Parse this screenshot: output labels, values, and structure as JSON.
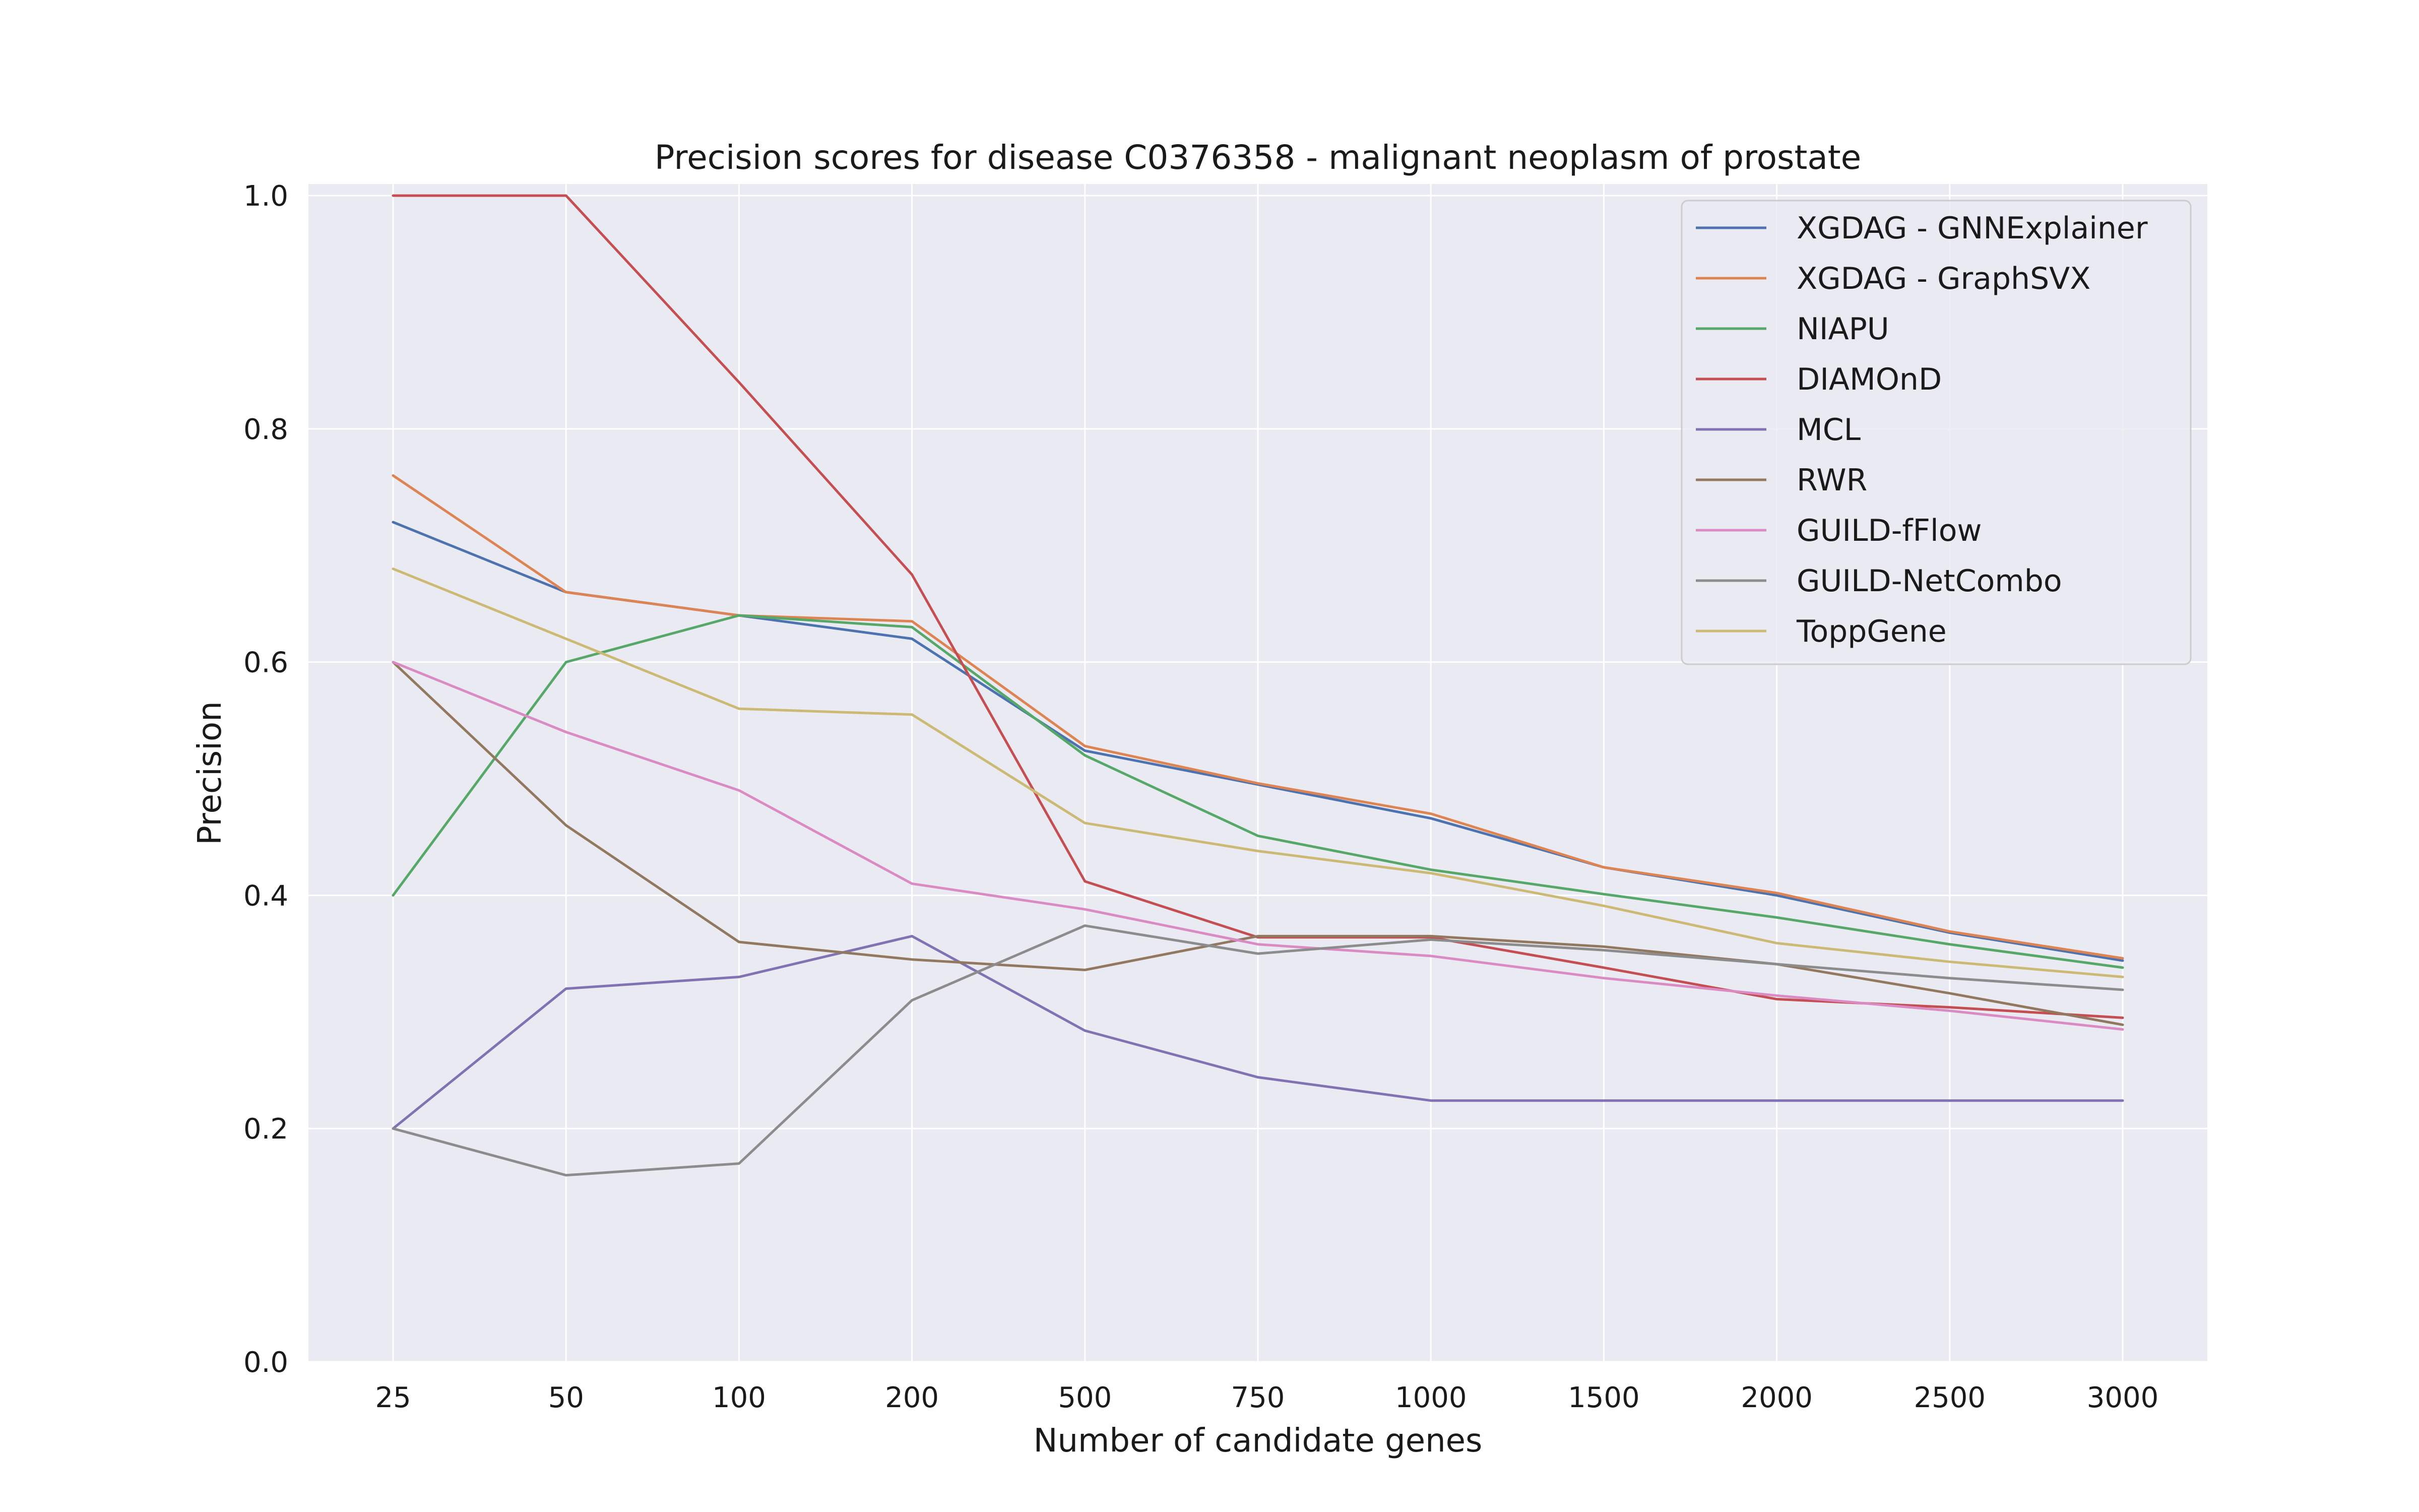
{
  "chart_data": {
    "type": "line",
    "title": "Precision scores for disease C0376358 - malignant neoplasm of prostate",
    "xlabel": "Number of candidate genes",
    "ylabel": "Precision",
    "categories": [
      "25",
      "50",
      "100",
      "200",
      "500",
      "750",
      "1000",
      "1500",
      "2000",
      "2500",
      "3000"
    ],
    "ylim": [
      0.0,
      1.01
    ],
    "yticks": [
      "0.0",
      "0.2",
      "0.4",
      "0.6",
      "0.8",
      "1.0"
    ],
    "grid": true,
    "legend_position": "top-right",
    "background": "#eaeaf2",
    "series": [
      {
        "name": "XGDAG - GNNExplainer",
        "color": "#4c72b0",
        "values": [
          0.72,
          0.66,
          0.64,
          0.62,
          0.524,
          0.495,
          0.466,
          0.424,
          0.4,
          0.368,
          0.344
        ]
      },
      {
        "name": "XGDAG - GraphSVX",
        "color": "#dd8452",
        "values": [
          0.76,
          0.66,
          0.64,
          0.635,
          0.528,
          0.496,
          0.47,
          0.424,
          0.402,
          0.369,
          0.346
        ]
      },
      {
        "name": "NIAPU",
        "color": "#55a868",
        "values": [
          0.4,
          0.6,
          0.64,
          0.63,
          0.52,
          0.451,
          0.422,
          0.401,
          0.381,
          0.358,
          0.338
        ]
      },
      {
        "name": "DIAMOnD",
        "color": "#c44e52",
        "values": [
          1.0,
          1.0,
          0.84,
          0.675,
          0.412,
          0.364,
          0.364,
          0.338,
          0.311,
          0.304,
          0.295
        ]
      },
      {
        "name": "MCL",
        "color": "#8172b3",
        "values": [
          0.2,
          0.32,
          0.33,
          0.365,
          0.284,
          0.244,
          0.224,
          0.224,
          0.224,
          0.224,
          0.224
        ]
      },
      {
        "name": "RWR",
        "color": "#937860",
        "values": [
          0.6,
          0.46,
          0.36,
          0.345,
          0.336,
          0.365,
          0.365,
          0.356,
          0.341,
          0.316,
          0.289
        ]
      },
      {
        "name": "GUILD-fFlow",
        "color": "#da8bc3",
        "values": [
          0.6,
          0.54,
          0.49,
          0.41,
          0.388,
          0.358,
          0.348,
          0.329,
          0.314,
          0.301,
          0.285
        ]
      },
      {
        "name": "GUILD-NetCombo",
        "color": "#8c8c8c",
        "values": [
          0.2,
          0.16,
          0.17,
          0.31,
          0.374,
          0.35,
          0.362,
          0.353,
          0.341,
          0.329,
          0.319
        ]
      },
      {
        "name": "ToppGene",
        "color": "#ccb974",
        "values": [
          0.68,
          0.62,
          0.56,
          0.555,
          0.462,
          0.438,
          0.419,
          0.391,
          0.359,
          0.343,
          0.33
        ]
      }
    ]
  }
}
